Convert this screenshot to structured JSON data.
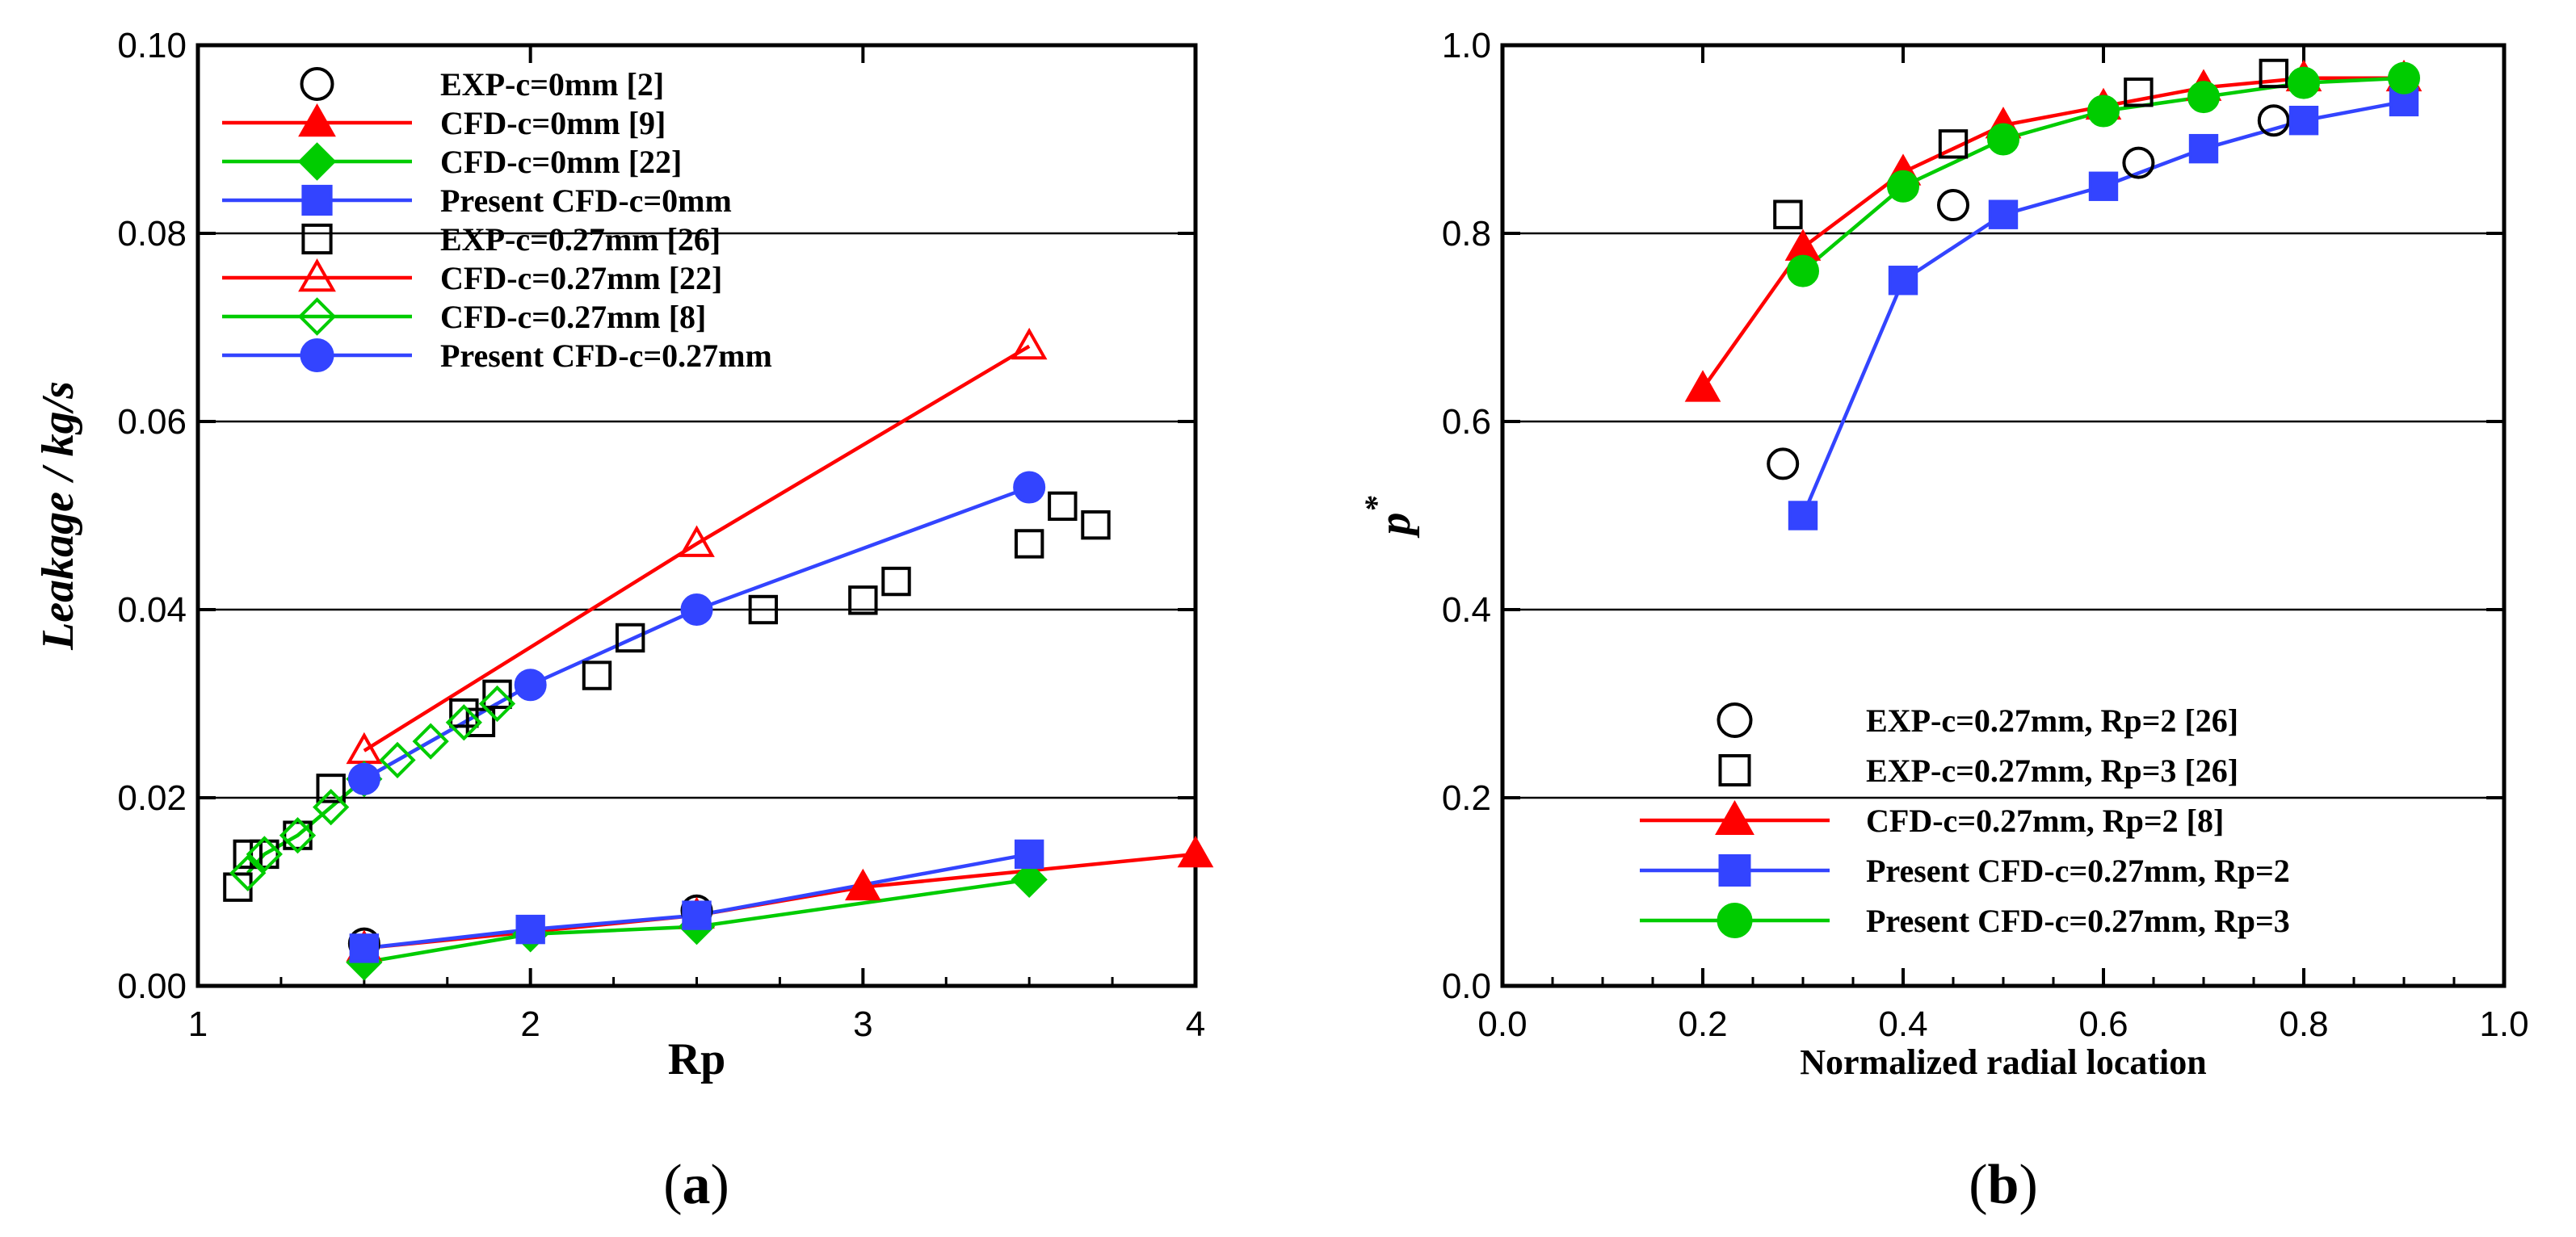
{
  "colors": {
    "red": "#ff0000",
    "green": "#00cc00",
    "blue": "#3344ff",
    "black": "#000000"
  },
  "chart_data": [
    {
      "id": "a",
      "type": "line",
      "panel_label": "a",
      "xlabel": "Rp",
      "ylabel": "Leakage / kg/s",
      "xlim": [
        1,
        4
      ],
      "ylim": [
        0,
        0.1
      ],
      "xticks": [
        "1",
        "2",
        "3",
        "4"
      ],
      "yticks": [
        "0.00",
        "0.02",
        "0.04",
        "0.06",
        "0.08",
        "0.10"
      ],
      "legend_position": "top-left",
      "series": [
        {
          "name": "EXP-c=0mm [2]",
          "marker": "circle",
          "fill": "open",
          "color": "black",
          "line": false,
          "x": [
            1.5,
            2.5
          ],
          "y": [
            0.0045,
            0.008
          ]
        },
        {
          "name": "CFD-c=0mm [9]",
          "marker": "triangle",
          "fill": "filled",
          "color": "red",
          "line": true,
          "x": [
            1.5,
            2.5,
            3.0,
            4.0
          ],
          "y": [
            0.004,
            0.0075,
            0.0105,
            0.014
          ]
        },
        {
          "name": "CFD-c=0mm [22]",
          "marker": "diamond",
          "fill": "filled",
          "color": "green",
          "line": true,
          "x": [
            1.5,
            2.0,
            2.5,
            3.5
          ],
          "y": [
            0.0025,
            0.0055,
            0.0063,
            0.0113
          ]
        },
        {
          "name": "Present CFD-c=0mm",
          "marker": "square",
          "fill": "filled",
          "color": "blue",
          "line": true,
          "x": [
            1.5,
            2.0,
            2.5,
            3.5
          ],
          "y": [
            0.004,
            0.006,
            0.0075,
            0.014
          ]
        },
        {
          "name": "EXP-c=0.27mm [26]",
          "marker": "square",
          "fill": "open",
          "color": "black",
          "line": false,
          "x": [
            1.12,
            1.15,
            1.2,
            1.3,
            1.4,
            1.8,
            1.85,
            1.9,
            2.2,
            2.3,
            2.7,
            3.0,
            3.1,
            3.5,
            3.6,
            3.7
          ],
          "y": [
            0.0105,
            0.014,
            0.014,
            0.016,
            0.021,
            0.029,
            0.028,
            0.031,
            0.033,
            0.037,
            0.04,
            0.041,
            0.043,
            0.047,
            0.051,
            0.049
          ]
        },
        {
          "name": "CFD-c=0.27mm [22]",
          "marker": "triangle",
          "fill": "open",
          "color": "red",
          "line": true,
          "x": [
            1.5,
            2.5,
            3.5
          ],
          "y": [
            0.025,
            0.047,
            0.068
          ]
        },
        {
          "name": "CFD-c=0.27mm [8]",
          "marker": "diamond",
          "fill": "open",
          "color": "green",
          "line": true,
          "x": [
            1.15,
            1.2,
            1.3,
            1.4,
            1.5,
            1.6,
            1.7,
            1.8,
            1.9
          ],
          "y": [
            0.012,
            0.014,
            0.016,
            0.019,
            0.022,
            0.024,
            0.026,
            0.028,
            0.03
          ]
        },
        {
          "name": "Present CFD-c=0.27mm",
          "marker": "circle",
          "fill": "filled",
          "color": "blue",
          "line": true,
          "x": [
            1.5,
            2.0,
            2.5,
            3.5
          ],
          "y": [
            0.022,
            0.032,
            0.04,
            0.053
          ]
        }
      ]
    },
    {
      "id": "b",
      "type": "line",
      "panel_label": "b",
      "xlabel": "Normalized radial location",
      "ylabel": "p",
      "ylabel_superscript": "*",
      "xlim": [
        0,
        1
      ],
      "ylim": [
        0,
        1
      ],
      "xticks": [
        "0.0",
        "0.2",
        "0.4",
        "0.6",
        "0.8",
        "1.0"
      ],
      "yticks": [
        "0.0",
        "0.2",
        "0.4",
        "0.6",
        "0.8",
        "1.0"
      ],
      "legend_position": "bottom-right",
      "series": [
        {
          "name": "EXP-c=0.27mm, Rp=2 [26]",
          "marker": "circle",
          "fill": "open",
          "color": "black",
          "line": false,
          "x": [
            0.28,
            0.45,
            0.635,
            0.77
          ],
          "y": [
            0.555,
            0.83,
            0.875,
            0.92
          ]
        },
        {
          "name": "EXP-c=0.27mm, Rp=3 [26]",
          "marker": "square",
          "fill": "open",
          "color": "black",
          "line": false,
          "x": [
            0.285,
            0.45,
            0.635,
            0.77
          ],
          "y": [
            0.82,
            0.895,
            0.95,
            0.97
          ]
        },
        {
          "name": "CFD-c=0.27mm, Rp=2 [8]",
          "marker": "triangle",
          "fill": "filled",
          "color": "red",
          "line": true,
          "x": [
            0.2,
            0.3,
            0.4,
            0.5,
            0.6,
            0.7,
            0.8,
            0.9
          ],
          "y": [
            0.635,
            0.785,
            0.865,
            0.915,
            0.935,
            0.955,
            0.965,
            0.965
          ]
        },
        {
          "name": "Present CFD-c=0.27mm, Rp=2",
          "marker": "square",
          "fill": "filled",
          "color": "blue",
          "line": true,
          "x": [
            0.3,
            0.4,
            0.5,
            0.6,
            0.7,
            0.8,
            0.9
          ],
          "y": [
            0.5,
            0.75,
            0.82,
            0.85,
            0.89,
            0.92,
            0.94
          ]
        },
        {
          "name": "Present CFD-c=0.27mm, Rp=3",
          "marker": "circle",
          "fill": "filled",
          "color": "green",
          "line": true,
          "x": [
            0.3,
            0.4,
            0.5,
            0.6,
            0.7,
            0.8,
            0.9
          ],
          "y": [
            0.76,
            0.85,
            0.9,
            0.93,
            0.945,
            0.96,
            0.965
          ]
        }
      ]
    }
  ]
}
